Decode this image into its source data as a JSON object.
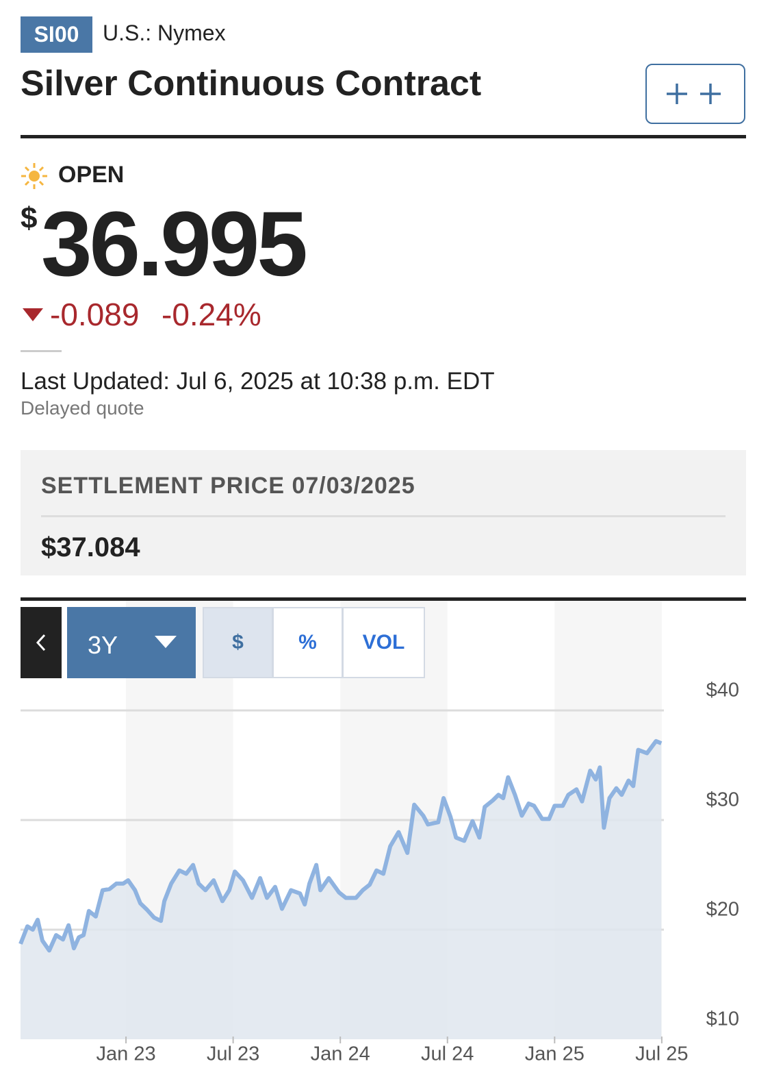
{
  "header": {
    "symbol": "SI00",
    "exchange": "U.S.: Nymex",
    "title": "Silver Continuous Contract"
  },
  "quote": {
    "status": "OPEN",
    "currency": "$",
    "price": "36.995",
    "change": "-0.089",
    "change_percent": "-0.24%",
    "last_updated": "Last Updated: Jul 6, 2025 at 10:38 p.m. EDT",
    "delay_note": "Delayed quote"
  },
  "settlement": {
    "label": "SETTLEMENT PRICE 07/03/2025",
    "price": "$37.084"
  },
  "controls": {
    "range": "3Y",
    "modes": [
      "$",
      "%",
      "VOL"
    ]
  },
  "chart_data": {
    "type": "area",
    "color": "#8fb3e0",
    "fill": "#dfe6ee",
    "grid": true,
    "xlim": [
      2022.508,
      2025.51
    ],
    "xticks": [
      {
        "value": 2023,
        "label": "Jan 23"
      },
      {
        "value": 2023.5,
        "label": "Jul 23"
      },
      {
        "value": 2024,
        "label": "Jan 24"
      },
      {
        "value": 2024.5,
        "label": "Jul 24"
      },
      {
        "value": 2025,
        "label": "Jan 25"
      },
      {
        "value": 2025.5,
        "label": "Jul 25"
      }
    ],
    "ylim": [
      10,
      42.5
    ],
    "yticks": [
      {
        "value": 10,
        "label": "$10"
      },
      {
        "value": 20,
        "label": "$20"
      },
      {
        "value": 30,
        "label": "$30"
      },
      {
        "value": 40,
        "label": "$40"
      }
    ],
    "x": [
      2022.508,
      2022.54,
      2022.565,
      2022.588,
      2022.61,
      2022.642,
      2022.674,
      2022.706,
      2022.732,
      2022.757,
      2022.78,
      2022.802,
      2022.827,
      2022.859,
      2022.891,
      2022.923,
      2022.955,
      2022.987,
      2023.01,
      2023.042,
      2023.067,
      2023.099,
      2023.131,
      2023.163,
      2023.179,
      2023.211,
      2023.249,
      2023.281,
      2023.313,
      2023.339,
      2023.371,
      2023.409,
      2023.45,
      2023.482,
      2023.508,
      2023.546,
      2023.588,
      2023.626,
      2023.658,
      2023.696,
      2023.728,
      2023.77,
      2023.812,
      2023.834,
      2023.856,
      2023.888,
      2023.907,
      2023.946,
      2023.994,
      2024.026,
      2024.073,
      2024.105,
      2024.137,
      2024.169,
      2024.201,
      2024.233,
      2024.272,
      2024.313,
      2024.345,
      2024.387,
      2024.409,
      2024.457,
      2024.482,
      2024.514,
      2024.54,
      2024.578,
      2024.617,
      2024.649,
      2024.674,
      2024.712,
      2024.738,
      2024.76,
      2024.783,
      2024.815,
      2024.847,
      2024.879,
      2024.904,
      2024.942,
      2024.974,
      2025.0,
      2025.038,
      2025.064,
      2025.102,
      2025.128,
      2025.166,
      2025.192,
      2025.211,
      2025.23,
      2025.256,
      2025.288,
      2025.313,
      2025.345,
      2025.367,
      2025.39,
      2025.431,
      2025.473,
      2025.498
    ],
    "values": [
      18.7,
      20.3,
      20.0,
      20.9,
      19.0,
      18.1,
      19.5,
      19.1,
      20.4,
      18.3,
      19.3,
      19.5,
      21.7,
      21.2,
      23.6,
      23.7,
      24.2,
      24.2,
      24.5,
      23.6,
      22.4,
      21.8,
      21.1,
      20.8,
      22.6,
      24.2,
      25.4,
      25.1,
      25.9,
      24.2,
      23.6,
      24.5,
      22.6,
      23.6,
      25.3,
      24.5,
      22.9,
      24.7,
      22.9,
      23.9,
      21.9,
      23.6,
      23.3,
      22.3,
      24.2,
      25.9,
      23.6,
      24.7,
      23.4,
      22.9,
      22.9,
      23.6,
      24.1,
      25.4,
      25.1,
      27.6,
      28.9,
      27.0,
      31.4,
      30.4,
      29.6,
      29.8,
      32.0,
      30.3,
      28.4,
      28.1,
      29.9,
      28.4,
      31.2,
      31.8,
      32.3,
      32.0,
      33.9,
      32.3,
      30.4,
      31.5,
      31.3,
      30.1,
      30.1,
      31.3,
      31.3,
      32.3,
      32.8,
      31.7,
      34.5,
      33.7,
      34.8,
      29.3,
      32.0,
      32.9,
      32.3,
      33.6,
      33.1,
      36.4,
      36.1,
      37.2,
      37.0
    ]
  }
}
